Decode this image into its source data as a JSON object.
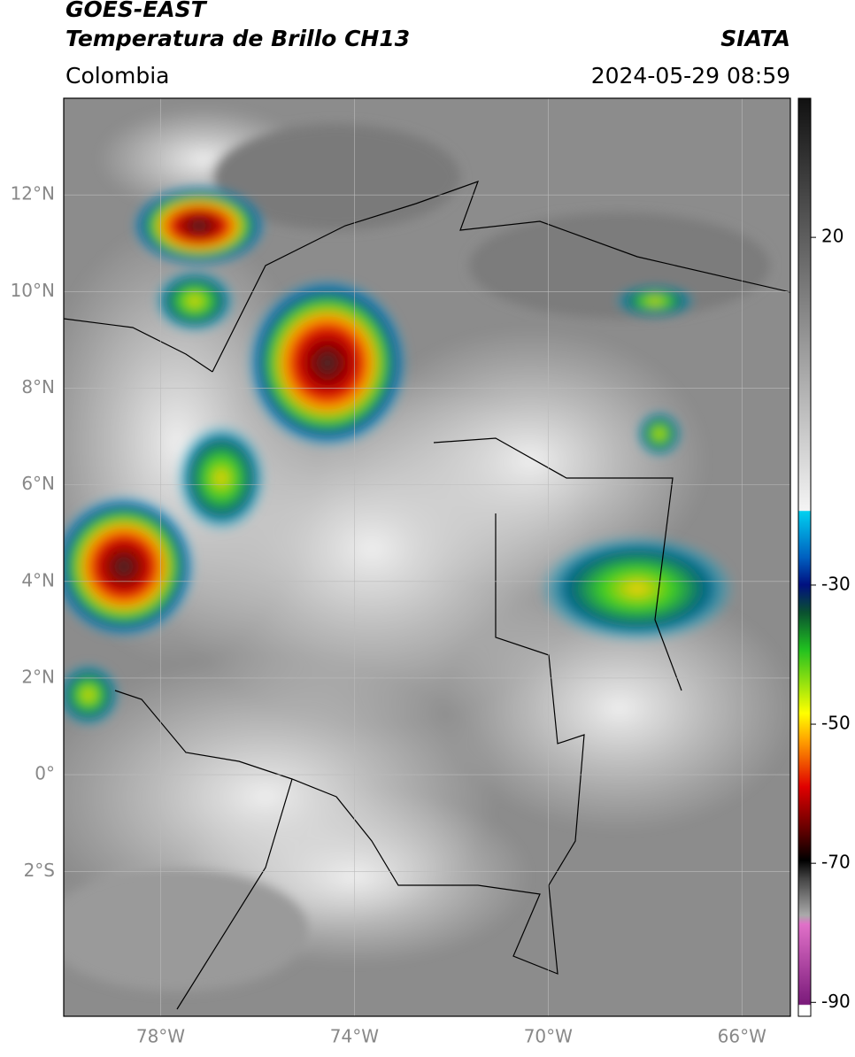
{
  "header": {
    "title": "GOES-EAST",
    "subtitle": "Temperatura de Brillo CH13",
    "source": "SIATA",
    "region": "Colombia",
    "timestamp": "2024-05-29 08:59"
  },
  "map": {
    "xlim": [
      -80,
      -65
    ],
    "ylim": [
      -5,
      14
    ],
    "xticks": [
      {
        "value": -78,
        "label": "78°W"
      },
      {
        "value": -74,
        "label": "74°W"
      },
      {
        "value": -70,
        "label": "70°W"
      },
      {
        "value": -66,
        "label": "66°W"
      }
    ],
    "yticks": [
      {
        "value": 12,
        "label": "12°N"
      },
      {
        "value": 10,
        "label": "10°N"
      },
      {
        "value": 8,
        "label": "8°N"
      },
      {
        "value": 6,
        "label": "6°N"
      },
      {
        "value": 4,
        "label": "4°N"
      },
      {
        "value": 2,
        "label": "2°N"
      },
      {
        "value": 0,
        "label": "0°"
      },
      {
        "value": -2,
        "label": "2°S"
      }
    ]
  },
  "colorbar": {
    "lim": [
      -92,
      40
    ],
    "ticks": [
      20,
      -30,
      -50,
      -70,
      -90
    ]
  }
}
